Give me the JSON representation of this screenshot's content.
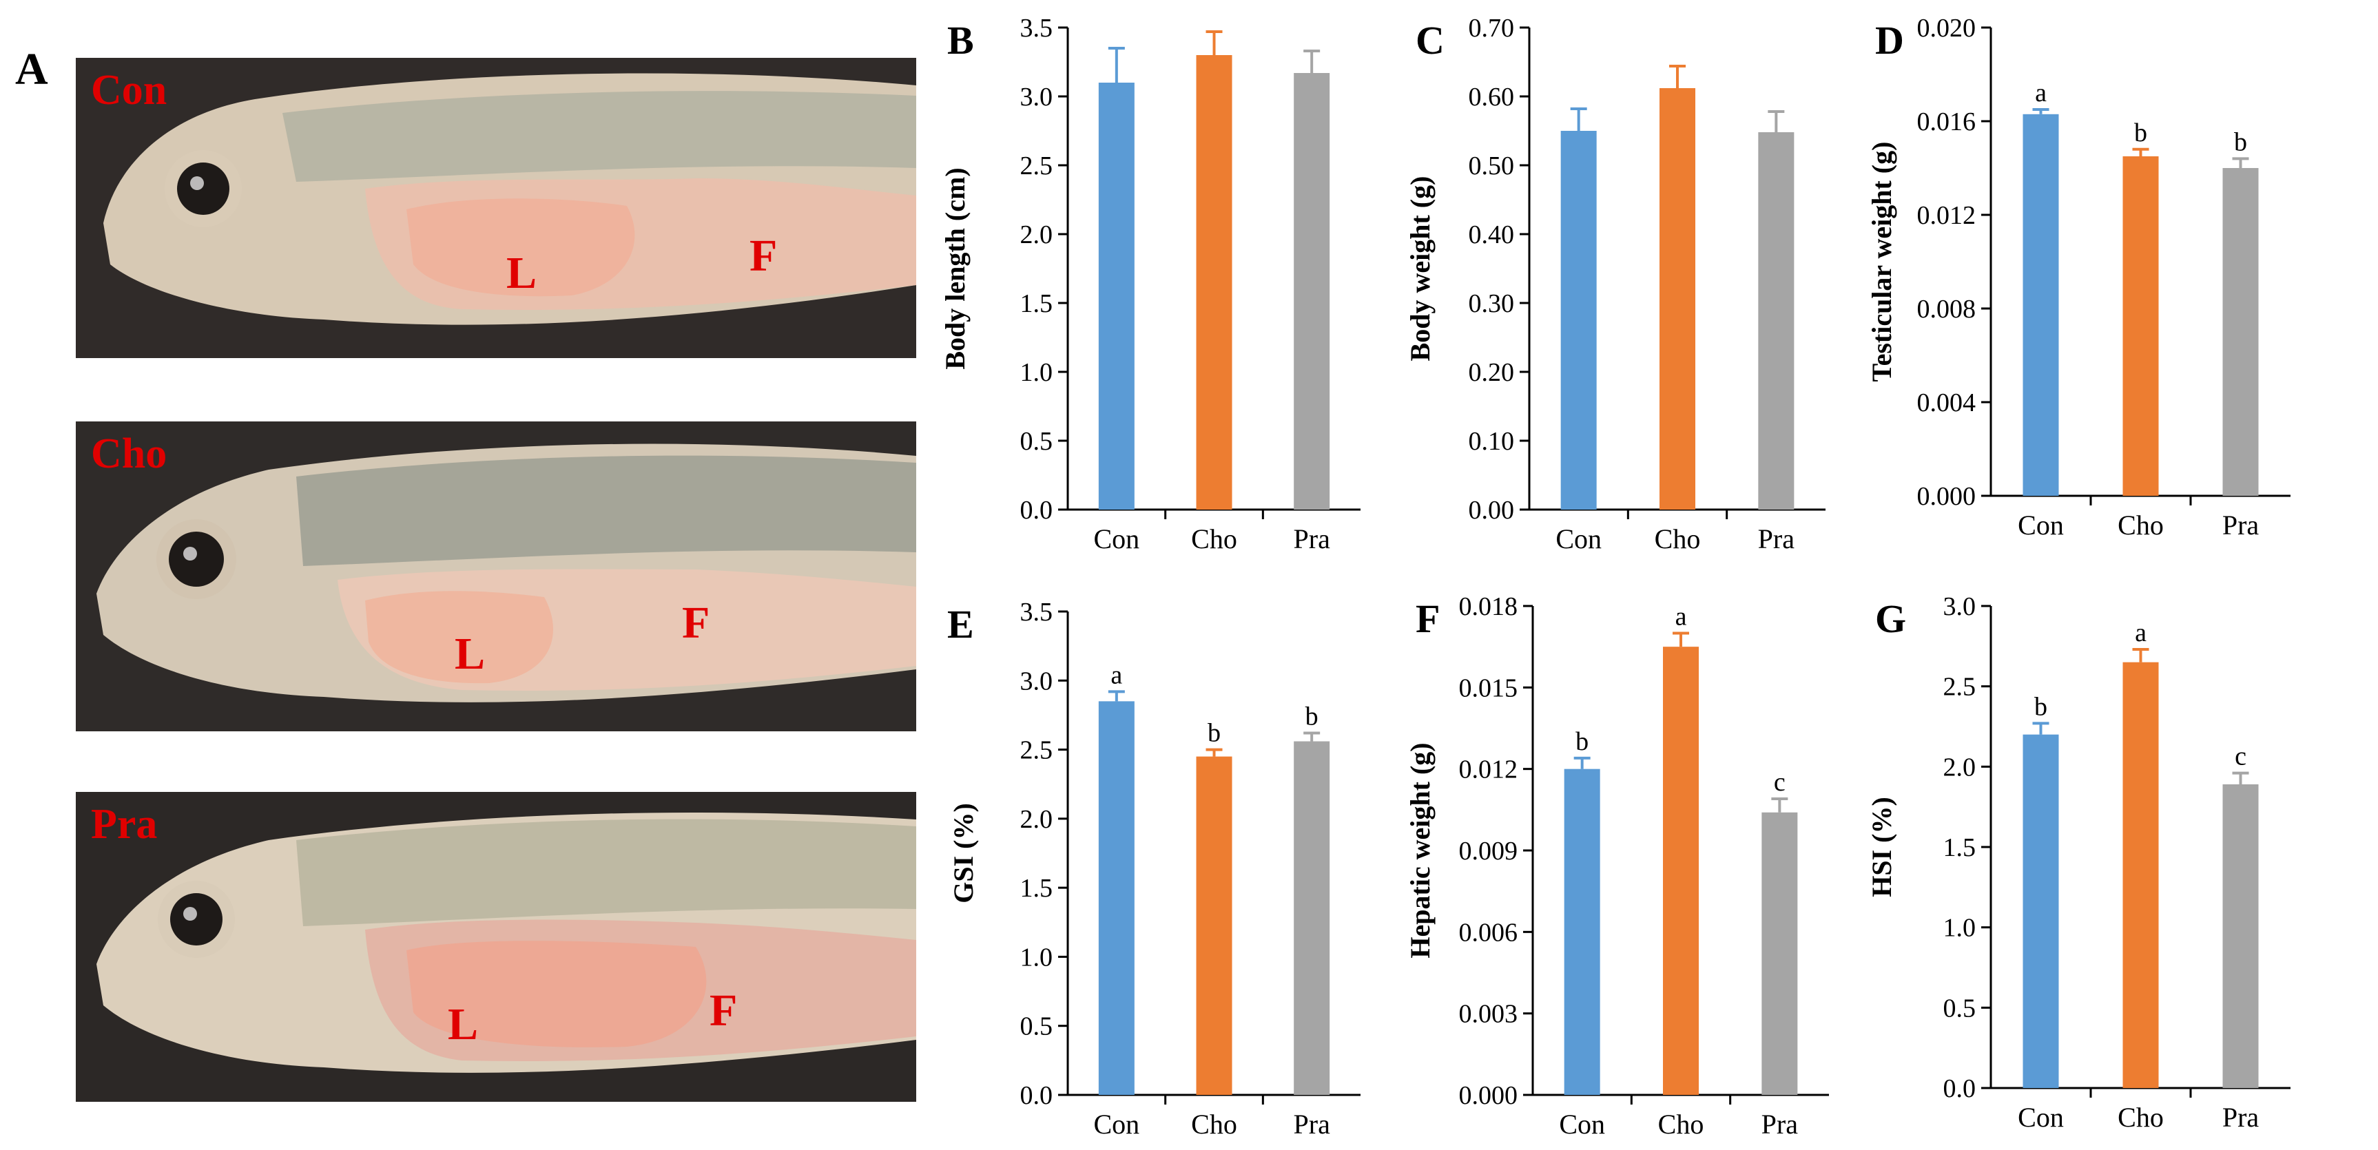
{
  "figure": {
    "panel_a_letter": "A",
    "colors": {
      "Con": "#5B9BD5",
      "Cho": "#ED7D31",
      "Pra": "#A5A5A5",
      "label_red": "#E00000"
    }
  },
  "photos": [
    {
      "group": "Con",
      "labels": [
        "L",
        "F"
      ]
    },
    {
      "group": "Cho",
      "labels": [
        "L",
        "F"
      ]
    },
    {
      "group": "Pra",
      "labels": [
        "L",
        "F"
      ]
    }
  ],
  "chart_data": [
    {
      "panel": "B",
      "type": "bar",
      "ylabel": "Body length (cm)",
      "categories": [
        "Con",
        "Cho",
        "Pra"
      ],
      "values": [
        3.1,
        3.3,
        3.17
      ],
      "errors": [
        0.25,
        0.17,
        0.16
      ],
      "sig_letters": [
        "",
        "",
        ""
      ],
      "ylim": [
        0,
        3.5
      ],
      "ticks": [
        "0.0",
        "0.5",
        "1.0",
        "1.5",
        "2.0",
        "2.5",
        "3.0",
        "3.5"
      ]
    },
    {
      "panel": "C",
      "type": "bar",
      "ylabel": "Body weight (g)",
      "categories": [
        "Con",
        "Cho",
        "Pra"
      ],
      "values": [
        0.55,
        0.612,
        0.548
      ],
      "errors": [
        0.032,
        0.032,
        0.03
      ],
      "sig_letters": [
        "",
        "",
        ""
      ],
      "ylim": [
        0,
        0.7
      ],
      "ticks": [
        "0.00",
        "0.10",
        "0.20",
        "0.30",
        "0.40",
        "0.50",
        "0.60",
        "0.70"
      ]
    },
    {
      "panel": "D",
      "type": "bar",
      "ylabel": "Testicular weight (g)",
      "categories": [
        "Con",
        "Cho",
        "Pra"
      ],
      "values": [
        0.0163,
        0.0145,
        0.014
      ],
      "errors": [
        0.0002,
        0.0003,
        0.0004
      ],
      "sig_letters": [
        "a",
        "b",
        "b"
      ],
      "ylim": [
        0,
        0.02
      ],
      "ticks": [
        "0.000",
        "0.004",
        "0.008",
        "0.012",
        "0.016",
        "0.020"
      ]
    },
    {
      "panel": "E",
      "type": "bar",
      "ylabel": "GSI (%)",
      "categories": [
        "Con",
        "Cho",
        "Pra"
      ],
      "values": [
        2.85,
        2.45,
        2.56
      ],
      "errors": [
        0.07,
        0.05,
        0.06
      ],
      "sig_letters": [
        "a",
        "b",
        "b"
      ],
      "ylim": [
        0,
        3.5
      ],
      "ticks": [
        "0.0",
        "0.5",
        "1.0",
        "1.5",
        "2.0",
        "2.5",
        "3.0",
        "3.5"
      ]
    },
    {
      "panel": "F",
      "type": "bar",
      "ylabel": "Hepatic weight (g)",
      "categories": [
        "Con",
        "Cho",
        "Pra"
      ],
      "values": [
        0.012,
        0.0165,
        0.0104
      ],
      "errors": [
        0.0004,
        0.0005,
        0.0005
      ],
      "sig_letters": [
        "b",
        "a",
        "c"
      ],
      "ylim": [
        0,
        0.018
      ],
      "ticks": [
        "0.000",
        "0.003",
        "0.006",
        "0.009",
        "0.012",
        "0.015",
        "0.018"
      ]
    },
    {
      "panel": "G",
      "type": "bar",
      "ylabel": "HSI (%)",
      "categories": [
        "Con",
        "Cho",
        "Pra"
      ],
      "values": [
        2.2,
        2.65,
        1.89
      ],
      "errors": [
        0.07,
        0.08,
        0.07
      ],
      "sig_letters": [
        "b",
        "a",
        "c"
      ],
      "ylim": [
        0,
        3.0
      ],
      "ticks": [
        "0.0",
        "0.5",
        "1.0",
        "1.5",
        "2.0",
        "2.5",
        "3.0"
      ]
    }
  ]
}
